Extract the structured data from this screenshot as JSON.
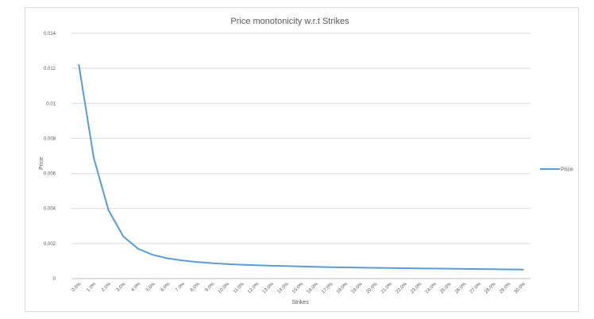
{
  "chart_data": {
    "type": "line",
    "title": "Price monotonicity w.r.t Strikes",
    "xlabel": "Strikes",
    "ylabel": "Price",
    "ylim": [
      0,
      0.014
    ],
    "y_ticks": [
      "0",
      "0.002",
      "0.004",
      "0.006",
      "0.008",
      "0.01",
      "0.012",
      "0.014"
    ],
    "categories": [
      "0.0%",
      "1.0%",
      "2.0%",
      "3.0%",
      "4.0%",
      "5.0%",
      "6.0%",
      "7.0%",
      "8.0%",
      "9.0%",
      "10.0%",
      "11.0%",
      "12.0%",
      "13.0%",
      "14.0%",
      "15.0%",
      "16.0%",
      "17.0%",
      "18.0%",
      "19.0%",
      "20.0%",
      "21.0%",
      "22.0%",
      "23.0%",
      "24.0%",
      "25.0%",
      "26.0%",
      "27.0%",
      "28.0%",
      "29.0%",
      "30.0%"
    ],
    "series": [
      {
        "name": "Price",
        "color": "#5b9bd5",
        "values": [
          0.0122,
          0.0069,
          0.0039,
          0.0024,
          0.0017,
          0.00135,
          0.00115,
          0.00103,
          0.00094,
          0.00088,
          0.00083,
          0.00079,
          0.00076,
          0.00073,
          0.00071,
          0.00069,
          0.00067,
          0.00065,
          0.00064,
          0.00062,
          0.00061,
          0.0006,
          0.00059,
          0.00058,
          0.00057,
          0.00056,
          0.00055,
          0.00054,
          0.00053,
          0.00052,
          0.00051
        ]
      }
    ],
    "grid": true,
    "legend_position": "right"
  }
}
